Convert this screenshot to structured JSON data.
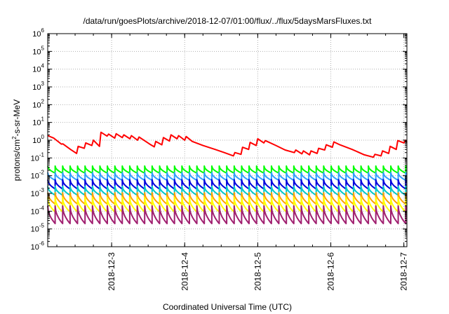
{
  "chart_data": {
    "type": "line",
    "title": "/data/run/goesPlots/archive/2018-12-07/01:00/flux/../flux/5daysMarsFluxes.txt",
    "xlabel": "Coordinated Universal Time (UTC)",
    "ylabel": {
      "prefix": "protons/cm",
      "sup": "2",
      "suffix": "-s-sr-MeV"
    },
    "y_scale": "log",
    "ylim_exp": [
      -6,
      6
    ],
    "y_ticks": [
      {
        "base": "10",
        "exp": "6"
      },
      {
        "base": "10",
        "exp": "5"
      },
      {
        "base": "10",
        "exp": "4"
      },
      {
        "base": "10",
        "exp": "3"
      },
      {
        "base": "10",
        "exp": "2"
      },
      {
        "base": "10",
        "exp": "1"
      },
      {
        "base": "10",
        "exp": "0"
      },
      {
        "base": "10",
        "exp": "-1"
      },
      {
        "base": "10",
        "exp": "-2"
      },
      {
        "base": "10",
        "exp": "-3"
      },
      {
        "base": "10",
        "exp": "-4"
      },
      {
        "base": "10",
        "exp": "-5"
      },
      {
        "base": "10",
        "exp": "-6"
      }
    ],
    "xlim": [
      "2018-12-02 03:00",
      "2018-12-07 01:00"
    ],
    "x_ticks": [
      "2018-12-3",
      "2018-12-4",
      "2018-12-5",
      "2018-12-6",
      "2018-12-7"
    ],
    "grid": true,
    "legend": "none",
    "series": [
      {
        "color": "#ff0000",
        "points": [
          [
            "2018-12-02 03:00",
            1.8
          ],
          [
            "2018-12-02 05:00",
            1.3
          ],
          [
            "2018-12-02 07:30",
            0.6
          ],
          [
            "2018-12-02 08:00",
            0.62
          ],
          [
            "2018-12-02 10:30",
            0.3
          ],
          [
            "2018-12-02 12:30",
            0.18
          ],
          [
            "2018-12-02 13:00",
            0.45
          ],
          [
            "2018-12-02 15:00",
            0.35
          ],
          [
            "2018-12-02 15:30",
            0.7
          ],
          [
            "2018-12-02 17:30",
            0.5
          ],
          [
            "2018-12-02 18:00",
            1.0
          ],
          [
            "2018-12-02 20:00",
            0.45
          ],
          [
            "2018-12-02 20:30",
            2.8
          ],
          [
            "2018-12-02 22:30",
            1.7
          ],
          [
            "2018-12-02 23:00",
            2.2
          ],
          [
            "2018-12-03 01:00",
            1.3
          ],
          [
            "2018-12-03 01:30",
            2.3
          ],
          [
            "2018-12-03 03:30",
            1.4
          ],
          [
            "2018-12-03 04:00",
            2.0
          ],
          [
            "2018-12-03 06:00",
            1.2
          ],
          [
            "2018-12-03 06:30",
            1.8
          ],
          [
            "2018-12-03 08:30",
            1.0
          ],
          [
            "2018-12-03 09:00",
            1.5
          ],
          [
            "2018-12-03 11:00",
            0.9
          ],
          [
            "2018-12-03 12:30",
            0.6
          ],
          [
            "2018-12-03 14:00",
            0.42
          ],
          [
            "2018-12-03 14:30",
            0.85
          ],
          [
            "2018-12-03 16:30",
            0.55
          ],
          [
            "2018-12-03 17:00",
            1.4
          ],
          [
            "2018-12-03 19:00",
            0.9
          ],
          [
            "2018-12-03 19:30",
            2.0
          ],
          [
            "2018-12-03 21:30",
            1.2
          ],
          [
            "2018-12-03 22:00",
            1.8
          ],
          [
            "2018-12-04 00:00",
            1.0
          ],
          [
            "2018-12-04 00:30",
            1.6
          ],
          [
            "2018-12-04 02:30",
            0.85
          ],
          [
            "2018-12-04 06:00",
            0.5
          ],
          [
            "2018-12-04 10:00",
            0.3
          ],
          [
            "2018-12-04 13:00",
            0.2
          ],
          [
            "2018-12-04 16:00",
            0.13
          ],
          [
            "2018-12-04 16:30",
            0.2
          ],
          [
            "2018-12-04 18:30",
            0.16
          ],
          [
            "2018-12-04 19:00",
            0.4
          ],
          [
            "2018-12-04 21:00",
            0.3
          ],
          [
            "2018-12-04 21:30",
            0.75
          ],
          [
            "2018-12-04 23:30",
            0.5
          ],
          [
            "2018-12-05 00:00",
            1.2
          ],
          [
            "2018-12-05 02:00",
            0.7
          ],
          [
            "2018-12-05 02:30",
            0.95
          ],
          [
            "2018-12-05 06:00",
            0.5
          ],
          [
            "2018-12-05 09:00",
            0.28
          ],
          [
            "2018-12-05 12:00",
            0.2
          ],
          [
            "2018-12-05 12:30",
            0.28
          ],
          [
            "2018-12-05 14:30",
            0.17
          ],
          [
            "2018-12-05 15:00",
            0.25
          ],
          [
            "2018-12-05 17:00",
            0.15
          ],
          [
            "2018-12-05 17:30",
            0.25
          ],
          [
            "2018-12-05 19:30",
            0.18
          ],
          [
            "2018-12-05 20:00",
            0.35
          ],
          [
            "2018-12-05 22:00",
            0.28
          ],
          [
            "2018-12-05 22:30",
            0.55
          ],
          [
            "2018-12-06 00:30",
            0.4
          ],
          [
            "2018-12-06 01:00",
            0.8
          ],
          [
            "2018-12-06 03:00",
            0.55
          ],
          [
            "2018-12-06 07:00",
            0.3
          ],
          [
            "2018-12-06 11:00",
            0.15
          ],
          [
            "2018-12-06 14:00",
            0.11
          ],
          [
            "2018-12-06 14:30",
            0.16
          ],
          [
            "2018-12-06 16:30",
            0.13
          ],
          [
            "2018-12-06 17:00",
            0.25
          ],
          [
            "2018-12-06 19:00",
            0.18
          ],
          [
            "2018-12-06 19:30",
            0.45
          ],
          [
            "2018-12-06 21:30",
            0.3
          ],
          [
            "2018-12-06 22:00",
            0.95
          ],
          [
            "2018-12-07 00:00",
            0.7
          ],
          [
            "2018-12-07 00:30",
            1.0
          ],
          [
            "2018-12-07 01:00",
            0.75
          ]
        ]
      },
      {
        "color": "#00ff00",
        "pulse": {
          "peak": 0.035,
          "trough": 0.014
        }
      },
      {
        "color": "#30a0ff",
        "pulse": {
          "peak": 0.015,
          "trough": 0.0055
        }
      },
      {
        "color": "#0000dd",
        "pulse": {
          "peak": 0.006,
          "trough": 0.0018
        }
      },
      {
        "color": "#00c8c8",
        "pulse": {
          "peak": 0.0025,
          "trough": 0.0008
        }
      },
      {
        "color": "#ffa000",
        "pulse": {
          "peak": 0.0011,
          "trough": 0.00025
        }
      },
      {
        "color": "#ffff00",
        "pulse": {
          "peak": 0.0006,
          "trough": 9e-05
        }
      },
      {
        "color": "#a02070",
        "pulse": {
          "peak": 0.0002,
          "trough": 2e-05
        }
      }
    ],
    "pulse_period_hours": 2.45
  }
}
